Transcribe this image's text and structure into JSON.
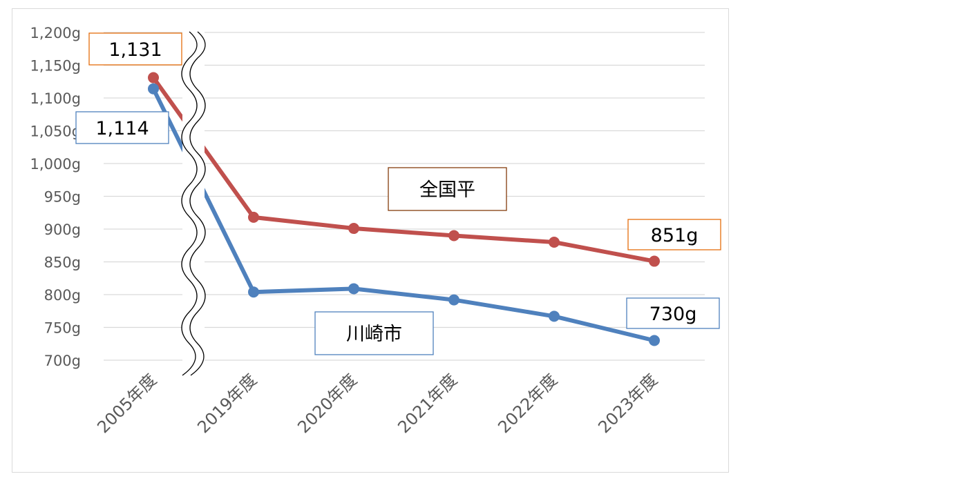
{
  "chart_data": {
    "type": "line",
    "title": "",
    "xlabel": "",
    "ylabel": "",
    "categories": [
      "2005年度",
      "2019年度",
      "2020年度",
      "2021年度",
      "2022年度",
      "2023年度"
    ],
    "y_tick_labels": [
      "700g",
      "750g",
      "800g",
      "850g",
      "900g",
      "950g",
      "1,000g",
      "1,050g",
      "1,100g",
      "1,150g",
      "1,200g"
    ],
    "ylim": [
      700,
      1200
    ],
    "y_tick_step": 50,
    "grid": true,
    "axis_break_after_category": 0,
    "series": [
      {
        "name": "全国平",
        "color": "#C0504D",
        "values": [
          1131,
          918,
          901,
          890,
          880,
          851
        ]
      },
      {
        "name": "川崎市",
        "color": "#4F81BD",
        "values": [
          1114,
          804,
          809,
          792,
          767,
          730
        ]
      }
    ],
    "callouts": [
      {
        "text": "1,131",
        "border_color": "#E46C0A"
      },
      {
        "text": "1,114",
        "border_color": "#4F81BD"
      },
      {
        "text": "851g",
        "border_color": "#E46C0A"
      },
      {
        "text": "730g",
        "border_color": "#4F81BD"
      },
      {
        "text": "全国平",
        "border_color": "#843C0C"
      },
      {
        "text": "川崎市",
        "border_color": "#4F81BD"
      }
    ]
  }
}
